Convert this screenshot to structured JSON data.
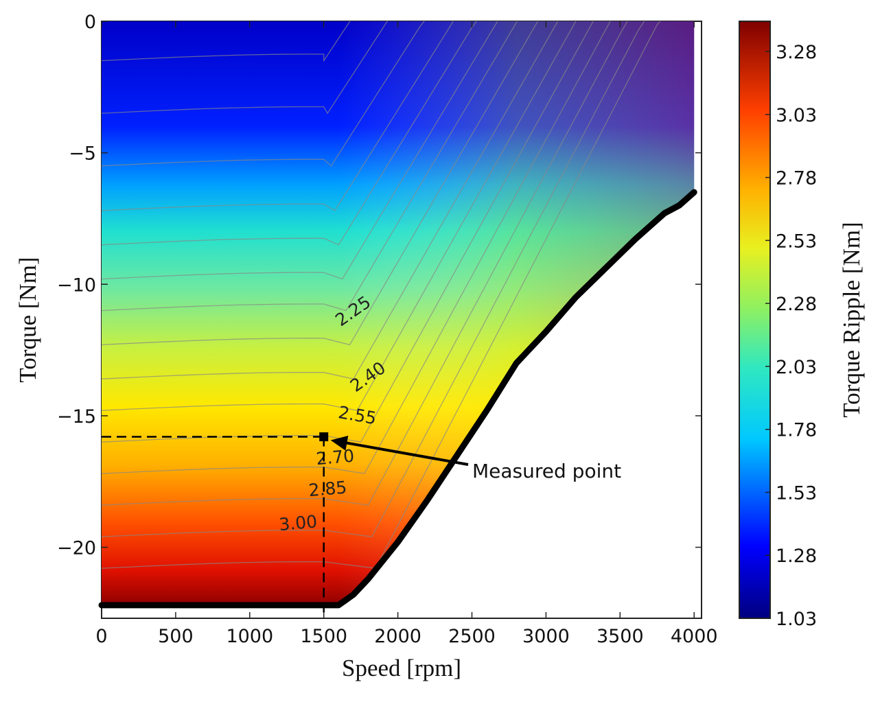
{
  "chart_data": {
    "type": "contour",
    "xlabel": "Speed [rpm]",
    "ylabel": "Torque [Nm]",
    "colorbar_label": "Torque Ripple [Nm]",
    "xlim": [
      0,
      4050
    ],
    "ylim": [
      -22.7,
      0
    ],
    "x_ticks": [
      {
        "value": 0,
        "label": "0"
      },
      {
        "value": 500,
        "label": "500"
      },
      {
        "value": 1000,
        "label": "1000"
      },
      {
        "value": 1500,
        "label": "1500"
      },
      {
        "value": 2000,
        "label": "2000"
      },
      {
        "value": 2500,
        "label": "2500"
      },
      {
        "value": 3000,
        "label": "3000"
      },
      {
        "value": 3500,
        "label": "3500"
      },
      {
        "value": 4000,
        "label": "4000"
      }
    ],
    "y_ticks": [
      {
        "value": 0,
        "label": "0"
      },
      {
        "value": -5,
        "label": "−5"
      },
      {
        "value": -10,
        "label": "−10"
      },
      {
        "value": -15,
        "label": "−15"
      },
      {
        "value": -20,
        "label": "−20"
      }
    ],
    "colorbar": {
      "min": 1.03,
      "max": 3.4,
      "ticks": [
        {
          "value": 3.28,
          "label": "3.28"
        },
        {
          "value": 3.03,
          "label": "3.03"
        },
        {
          "value": 2.78,
          "label": "2.78"
        },
        {
          "value": 2.53,
          "label": "2.53"
        },
        {
          "value": 2.28,
          "label": "2.28"
        },
        {
          "value": 2.03,
          "label": "2.03"
        },
        {
          "value": 1.78,
          "label": "1.78"
        },
        {
          "value": 1.53,
          "label": "1.53"
        },
        {
          "value": 1.28,
          "label": "1.28"
        },
        {
          "value": 1.03,
          "label": "1.03"
        }
      ],
      "colormap": "jet"
    },
    "boundary": {
      "speed": [
        0,
        1600,
        1700,
        1800,
        2000,
        2200,
        2400,
        2600,
        2800,
        3000,
        3200,
        3400,
        3600,
        3800,
        3900,
        4000
      ],
      "torque": [
        -22.2,
        -22.2,
        -21.8,
        -21.2,
        -19.8,
        -18.2,
        -16.5,
        -14.8,
        -13.0,
        -11.8,
        -10.5,
        -9.4,
        -8.3,
        -7.3,
        -7.0,
        -6.5
      ]
    },
    "contour_labels": [
      {
        "value": "2.25",
        "speed": 1720,
        "torque": -11.2
      },
      {
        "value": "2.40",
        "speed": 1820,
        "torque": -13.7
      },
      {
        "value": "2.55",
        "speed": 1720,
        "torque": -15.2
      },
      {
        "value": "2.70",
        "speed": 1580,
        "torque": -16.8
      },
      {
        "value": "2.85",
        "speed": 1530,
        "torque": -18.0
      },
      {
        "value": "3.00",
        "speed": 1330,
        "torque": -19.3
      }
    ],
    "measured_point": {
      "label": "Measured point",
      "speed": 1500,
      "torque": -15.8
    }
  }
}
